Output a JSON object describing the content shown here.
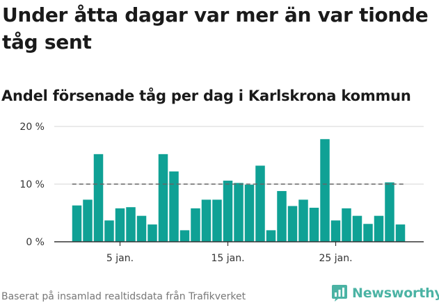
{
  "header": {
    "title": "Under åtta dagar var mer än var tionde tåg sent",
    "subtitle": "Andel försenade tåg per dag i Karlskrona kommun"
  },
  "footer": {
    "source": "Baserat på insamlad realtidsdata från Trafikverket",
    "logo_text": "Newsworthy",
    "logo_icon": "bar-chart-logo-icon"
  },
  "colors": {
    "bar": "#0fa195",
    "reference_line": "#666666",
    "grid": "#dddddd",
    "axis": "#333333",
    "logo": "#4bb3a4"
  },
  "chart_data": {
    "type": "bar",
    "title": "Andel försenade tåg per dag i Karlskrona kommun",
    "xlabel": "",
    "ylabel": "",
    "x": [
      1,
      2,
      3,
      4,
      5,
      6,
      7,
      8,
      9,
      10,
      11,
      12,
      13,
      14,
      15,
      16,
      17,
      18,
      19,
      20,
      21,
      22,
      23,
      24,
      25,
      26,
      27,
      28,
      29,
      30,
      31
    ],
    "values": [
      6.3,
      7.3,
      15.2,
      3.7,
      5.8,
      6.0,
      4.5,
      3.0,
      15.2,
      12.2,
      2.0,
      5.8,
      7.3,
      7.3,
      10.6,
      10.2,
      9.9,
      13.2,
      2.0,
      8.8,
      6.2,
      7.3,
      5.9,
      17.8,
      3.7,
      5.8,
      4.5,
      3.1,
      4.5,
      10.3,
      3.0
    ],
    "xticks": [
      {
        "x": 5,
        "label": "5 jan."
      },
      {
        "x": 15,
        "label": "15 jan."
      },
      {
        "x": 25,
        "label": "25 jan."
      }
    ],
    "yticks": [
      {
        "y": 0,
        "label": "0 %"
      },
      {
        "y": 10,
        "label": "10 %"
      },
      {
        "y": 20,
        "label": "20 %"
      }
    ],
    "ylim": [
      0,
      20
    ],
    "reference_line": {
      "y": 10,
      "style": "dashed"
    },
    "grid": true,
    "legend": "none"
  }
}
